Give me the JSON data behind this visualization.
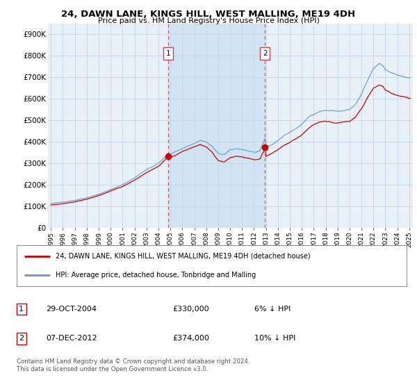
{
  "title": "24, DAWN LANE, KINGS HILL, WEST MALLING, ME19 4DH",
  "subtitle": "Price paid vs. HM Land Registry's House Price Index (HPI)",
  "ylabel_ticks": [
    "£0",
    "£100K",
    "£200K",
    "£300K",
    "£400K",
    "£500K",
    "£600K",
    "£700K",
    "£800K",
    "£900K"
  ],
  "ytick_values": [
    0,
    100000,
    200000,
    300000,
    400000,
    500000,
    600000,
    700000,
    800000,
    900000
  ],
  "ylim": [
    0,
    950000
  ],
  "background_color": "#ffffff",
  "plot_bg_color": "#e8f0f8",
  "grid_color": "#c8d8e8",
  "hpi_color": "#6699cc",
  "price_color": "#cc0000",
  "marker_color": "#cc0000",
  "dashed_line_color": "#cc4444",
  "shade_color": "#d0e4f4",
  "transaction1": {
    "date": "29-OCT-2004",
    "price": 330000,
    "label": "1",
    "x": 2004.83
  },
  "transaction2": {
    "date": "07-DEC-2012",
    "price": 374000,
    "label": "2",
    "x": 2012.92
  },
  "legend_line1": "24, DAWN LANE, KINGS HILL, WEST MALLING, ME19 4DH (detached house)",
  "legend_line2": "HPI: Average price, detached house, Tonbridge and Malling",
  "table_row1": [
    "1",
    "29-OCT-2004",
    "£330,000",
    "6% ↓ HPI"
  ],
  "table_row2": [
    "2",
    "07-DEC-2012",
    "£374,000",
    "10% ↓ HPI"
  ],
  "footer": "Contains HM Land Registry data © Crown copyright and database right 2024.\nThis data is licensed under the Open Government Licence v3.0."
}
